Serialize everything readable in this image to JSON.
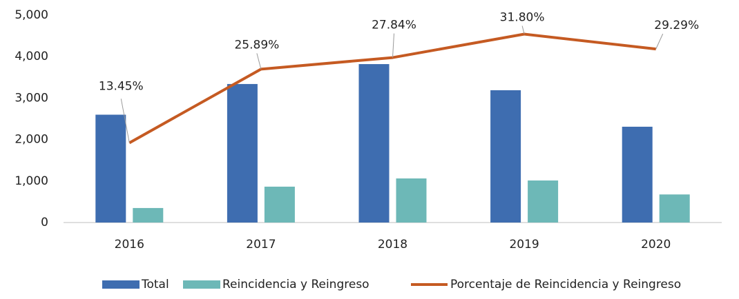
{
  "chart_data": {
    "type": "bar",
    "categories": [
      "2016",
      "2017",
      "2018",
      "2019",
      "2020"
    ],
    "series": [
      {
        "name": "Total",
        "type": "bar",
        "color": "#3e6db0",
        "values": [
          2600,
          3340,
          3820,
          3190,
          2310
        ]
      },
      {
        "name": "Reincidencia y Reingreso",
        "type": "bar",
        "color": "#6db8b7",
        "values": [
          350,
          865,
          1063,
          1014,
          677
        ]
      },
      {
        "name": "Porcentaje de Reincidencia y Reingreso",
        "type": "line",
        "axis": "y2",
        "color": "#c55a22",
        "values": [
          13.45,
          25.89,
          27.84,
          31.8,
          29.29
        ],
        "value_labels": [
          "13.45%",
          "25.89%",
          "27.84%",
          "31.80%",
          "29.29%"
        ]
      }
    ],
    "ylim": [
      0,
      5000
    ],
    "yticks": [
      {
        "value": 0,
        "label": "0"
      },
      {
        "value": 1000,
        "label": "1,000"
      },
      {
        "value": 2000,
        "label": "2,000"
      },
      {
        "value": 3000,
        "label": "3,000"
      },
      {
        "value": 4000,
        "label": "4,000"
      },
      {
        "value": 5000,
        "label": "5,000"
      }
    ],
    "y2lim": [
      0,
      35
    ],
    "legend": "bottom"
  }
}
